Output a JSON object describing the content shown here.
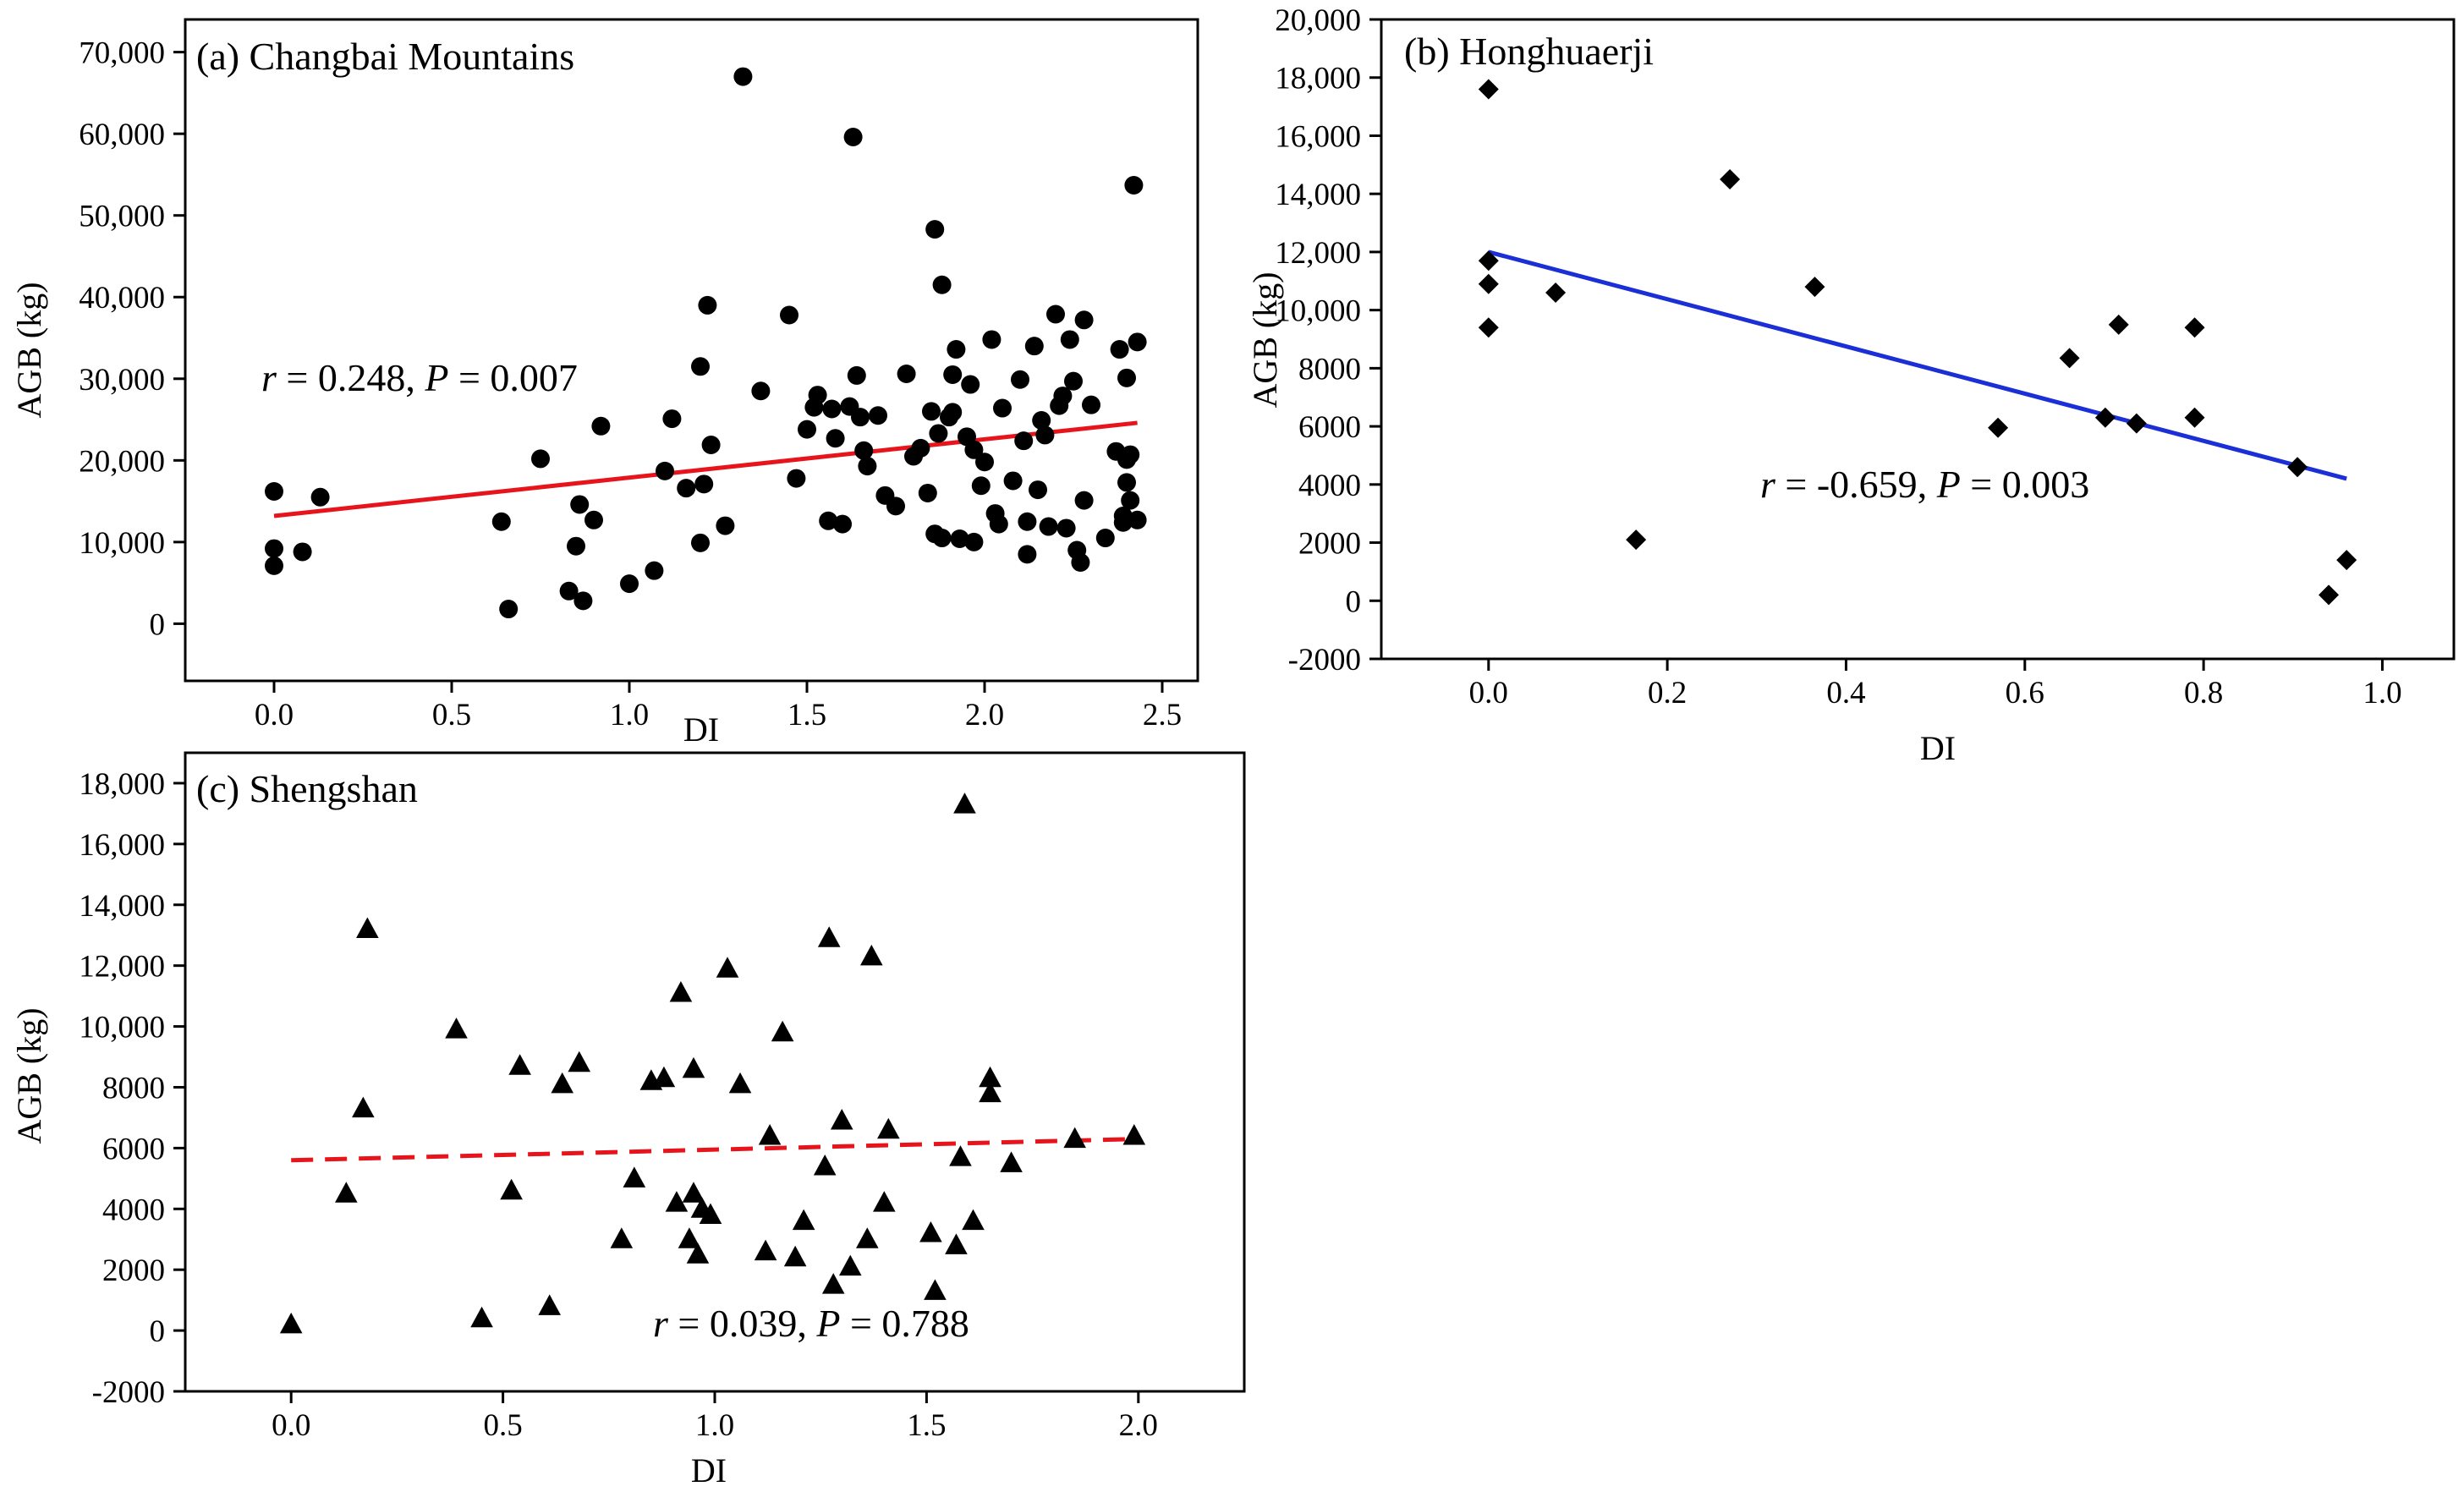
{
  "colors": {
    "axis": "#000000",
    "marker": "#000000",
    "fit_red": "#e8141b",
    "fit_blue": "#1a2fd6"
  },
  "chart_data": [
    {
      "type": "scatter",
      "title": "(a) Changbai Mountains",
      "xlabel": "DI",
      "ylabel": "AGB (kg)",
      "xlim": [
        -0.25,
        2.6
      ],
      "ylim": [
        -7000,
        74000
      ],
      "xticks": [
        "0.0",
        "0.5",
        "1.0",
        "1.5",
        "2.0",
        "2.5"
      ],
      "xtick_values": [
        0,
        0.5,
        1.0,
        1.5,
        2.0,
        2.5
      ],
      "yticks": [
        "0",
        "10,000",
        "20,000",
        "30,000",
        "40,000",
        "50,000",
        "60,000",
        "70,000"
      ],
      "ytick_values": [
        0,
        10000,
        20000,
        30000,
        40000,
        50000,
        60000,
        70000
      ],
      "marker": "circle",
      "annotation": {
        "r": "0.248",
        "P": "0.007"
      },
      "fit": {
        "x": [
          0,
          2.43
        ],
        "y": [
          13200,
          24600
        ],
        "color": "#e8141b",
        "dashed": false
      },
      "points": [
        [
          0.0,
          16200
        ],
        [
          0.0,
          9200
        ],
        [
          0.0,
          7100
        ],
        [
          0.08,
          8800
        ],
        [
          0.13,
          15500
        ],
        [
          0.64,
          12500
        ],
        [
          0.66,
          1800
        ],
        [
          0.75,
          20200
        ],
        [
          0.83,
          4000
        ],
        [
          0.85,
          9500
        ],
        [
          0.86,
          14600
        ],
        [
          0.87,
          2800
        ],
        [
          0.9,
          12700
        ],
        [
          0.92,
          24200
        ],
        [
          1.0,
          4900
        ],
        [
          1.07,
          6500
        ],
        [
          1.1,
          18700
        ],
        [
          1.12,
          25100
        ],
        [
          1.16,
          16600
        ],
        [
          1.2,
          9900
        ],
        [
          1.2,
          31500
        ],
        [
          1.21,
          17100
        ],
        [
          1.22,
          39000
        ],
        [
          1.23,
          21900
        ],
        [
          1.27,
          12000
        ],
        [
          1.32,
          67000
        ],
        [
          1.37,
          28500
        ],
        [
          1.45,
          37800
        ],
        [
          1.47,
          17800
        ],
        [
          1.5,
          23800
        ],
        [
          1.52,
          26500
        ],
        [
          1.53,
          28000
        ],
        [
          1.56,
          12600
        ],
        [
          1.57,
          26300
        ],
        [
          1.58,
          22700
        ],
        [
          1.6,
          12200
        ],
        [
          1.62,
          26600
        ],
        [
          1.63,
          59600
        ],
        [
          1.64,
          30400
        ],
        [
          1.65,
          25300
        ],
        [
          1.66,
          21200
        ],
        [
          1.67,
          19300
        ],
        [
          1.7,
          25500
        ],
        [
          1.72,
          15700
        ],
        [
          1.75,
          14400
        ],
        [
          1.78,
          30600
        ],
        [
          1.8,
          20500
        ],
        [
          1.82,
          21500
        ],
        [
          1.84,
          16000
        ],
        [
          1.85,
          26000
        ],
        [
          1.86,
          11000
        ],
        [
          1.86,
          48300
        ],
        [
          1.87,
          23300
        ],
        [
          1.88,
          41500
        ],
        [
          1.88,
          10500
        ],
        [
          1.9,
          25300
        ],
        [
          1.91,
          25900
        ],
        [
          1.91,
          30500
        ],
        [
          1.92,
          33600
        ],
        [
          1.93,
          10400
        ],
        [
          1.95,
          22900
        ],
        [
          1.96,
          29300
        ],
        [
          1.97,
          21300
        ],
        [
          1.97,
          10000
        ],
        [
          1.99,
          16900
        ],
        [
          2.0,
          19800
        ],
        [
          2.02,
          34800
        ],
        [
          2.03,
          13500
        ],
        [
          2.04,
          12200
        ],
        [
          2.05,
          26400
        ],
        [
          2.08,
          17500
        ],
        [
          2.1,
          29900
        ],
        [
          2.11,
          22400
        ],
        [
          2.12,
          12500
        ],
        [
          2.12,
          8500
        ],
        [
          2.14,
          34000
        ],
        [
          2.15,
          16400
        ],
        [
          2.16,
          24900
        ],
        [
          2.17,
          23100
        ],
        [
          2.18,
          11900
        ],
        [
          2.2,
          37900
        ],
        [
          2.21,
          26700
        ],
        [
          2.22,
          27900
        ],
        [
          2.23,
          11700
        ],
        [
          2.24,
          34800
        ],
        [
          2.25,
          29700
        ],
        [
          2.26,
          9000
        ],
        [
          2.27,
          7500
        ],
        [
          2.28,
          15100
        ],
        [
          2.28,
          37200
        ],
        [
          2.3,
          26800
        ],
        [
          2.34,
          10500
        ],
        [
          2.37,
          21100
        ],
        [
          2.38,
          33600
        ],
        [
          2.39,
          12400
        ],
        [
          2.39,
          13200
        ],
        [
          2.4,
          20100
        ],
        [
          2.4,
          17300
        ],
        [
          2.4,
          30100
        ],
        [
          2.41,
          15100
        ],
        [
          2.41,
          20700
        ],
        [
          2.42,
          53700
        ],
        [
          2.43,
          34500
        ],
        [
          2.43,
          12700
        ]
      ]
    },
    {
      "type": "scatter",
      "title": "(b) Honghuaerji",
      "xlabel": "DI",
      "ylabel": "AGB (kg)",
      "xlim": [
        -0.12,
        1.08
      ],
      "ylim": [
        -2000,
        20000
      ],
      "xticks": [
        "0.0",
        "0.2",
        "0.4",
        "0.6",
        "0.8",
        "1.0"
      ],
      "xtick_values": [
        0,
        0.2,
        0.4,
        0.6,
        0.8,
        1.0
      ],
      "yticks": [
        "-2000",
        "0",
        "2000",
        "4000",
        "6000",
        "8000",
        "10,000",
        "12,000",
        "14,000",
        "16,000",
        "18,000",
        "20,000"
      ],
      "ytick_values": [
        -2000,
        0,
        2000,
        4000,
        6000,
        8000,
        10000,
        12000,
        14000,
        16000,
        18000,
        20000
      ],
      "marker": "diamond",
      "annotation": {
        "r": "-0.659",
        "P": "0.003"
      },
      "fit": {
        "x": [
          0,
          0.96
        ],
        "y": [
          12000,
          4200
        ],
        "color": "#1a2fd6",
        "dashed": false
      },
      "points": [
        [
          0.0,
          17600
        ],
        [
          0.0,
          11700
        ],
        [
          0.0,
          10900
        ],
        [
          0.0,
          9400
        ],
        [
          0.075,
          10600
        ],
        [
          0.165,
          2100
        ],
        [
          0.27,
          14500
        ],
        [
          0.365,
          10800
        ],
        [
          0.57,
          5950
        ],
        [
          0.65,
          8350
        ],
        [
          0.69,
          6300
        ],
        [
          0.705,
          9500
        ],
        [
          0.725,
          6100
        ],
        [
          0.79,
          9400
        ],
        [
          0.79,
          6300
        ],
        [
          0.905,
          4600
        ],
        [
          0.94,
          200
        ],
        [
          0.96,
          1400
        ]
      ]
    },
    {
      "type": "scatter",
      "title": "(c) Shengshan",
      "xlabel": "DI",
      "ylabel": "AGB (kg)",
      "xlim": [
        -0.25,
        2.25
      ],
      "ylim": [
        -2000,
        19000
      ],
      "xticks": [
        "0.0",
        "0.5",
        "1.0",
        "1.5",
        "2.0"
      ],
      "xtick_values": [
        0,
        0.5,
        1.0,
        1.5,
        2.0
      ],
      "yticks": [
        "-2000",
        "0",
        "2000",
        "4000",
        "6000",
        "8000",
        "10,000",
        "12,000",
        "14,000",
        "16,000",
        "18,000"
      ],
      "ytick_values": [
        -2000,
        0,
        2000,
        4000,
        6000,
        8000,
        10000,
        12000,
        14000,
        16000,
        18000
      ],
      "marker": "triangle",
      "annotation": {
        "r": "0.039",
        "P": "0.788"
      },
      "fit": {
        "x": [
          0,
          2.0
        ],
        "y": [
          5600,
          6300
        ],
        "color": "#e8141b",
        "dashed": true
      },
      "points": [
        [
          0.0,
          200
        ],
        [
          0.13,
          4500
        ],
        [
          0.17,
          7300
        ],
        [
          0.18,
          13200
        ],
        [
          0.39,
          9900
        ],
        [
          0.45,
          400
        ],
        [
          0.52,
          4600
        ],
        [
          0.54,
          8700
        ],
        [
          0.61,
          800
        ],
        [
          0.64,
          8100
        ],
        [
          0.68,
          8800
        ],
        [
          0.78,
          3000
        ],
        [
          0.81,
          5000
        ],
        [
          0.85,
          8200
        ],
        [
          0.88,
          8300
        ],
        [
          0.91,
          4200
        ],
        [
          0.92,
          11100
        ],
        [
          0.94,
          3000
        ],
        [
          0.95,
          8600
        ],
        [
          0.95,
          4500
        ],
        [
          0.96,
          2500
        ],
        [
          0.97,
          4000
        ],
        [
          0.99,
          3800
        ],
        [
          1.03,
          11900
        ],
        [
          1.06,
          8100
        ],
        [
          1.12,
          2600
        ],
        [
          1.13,
          6400
        ],
        [
          1.16,
          9800
        ],
        [
          1.19,
          2400
        ],
        [
          1.21,
          3600
        ],
        [
          1.26,
          5400
        ],
        [
          1.27,
          12900
        ],
        [
          1.28,
          1500
        ],
        [
          1.3,
          6900
        ],
        [
          1.32,
          2100
        ],
        [
          1.36,
          3000
        ],
        [
          1.37,
          12300
        ],
        [
          1.4,
          4200
        ],
        [
          1.41,
          6600
        ],
        [
          1.51,
          3200
        ],
        [
          1.52,
          1300
        ],
        [
          1.57,
          2800
        ],
        [
          1.58,
          5700
        ],
        [
          1.59,
          17300
        ],
        [
          1.61,
          3600
        ],
        [
          1.65,
          7800
        ],
        [
          1.65,
          8300
        ],
        [
          1.7,
          5500
        ],
        [
          1.85,
          6300
        ],
        [
          1.99,
          6400
        ]
      ]
    }
  ]
}
